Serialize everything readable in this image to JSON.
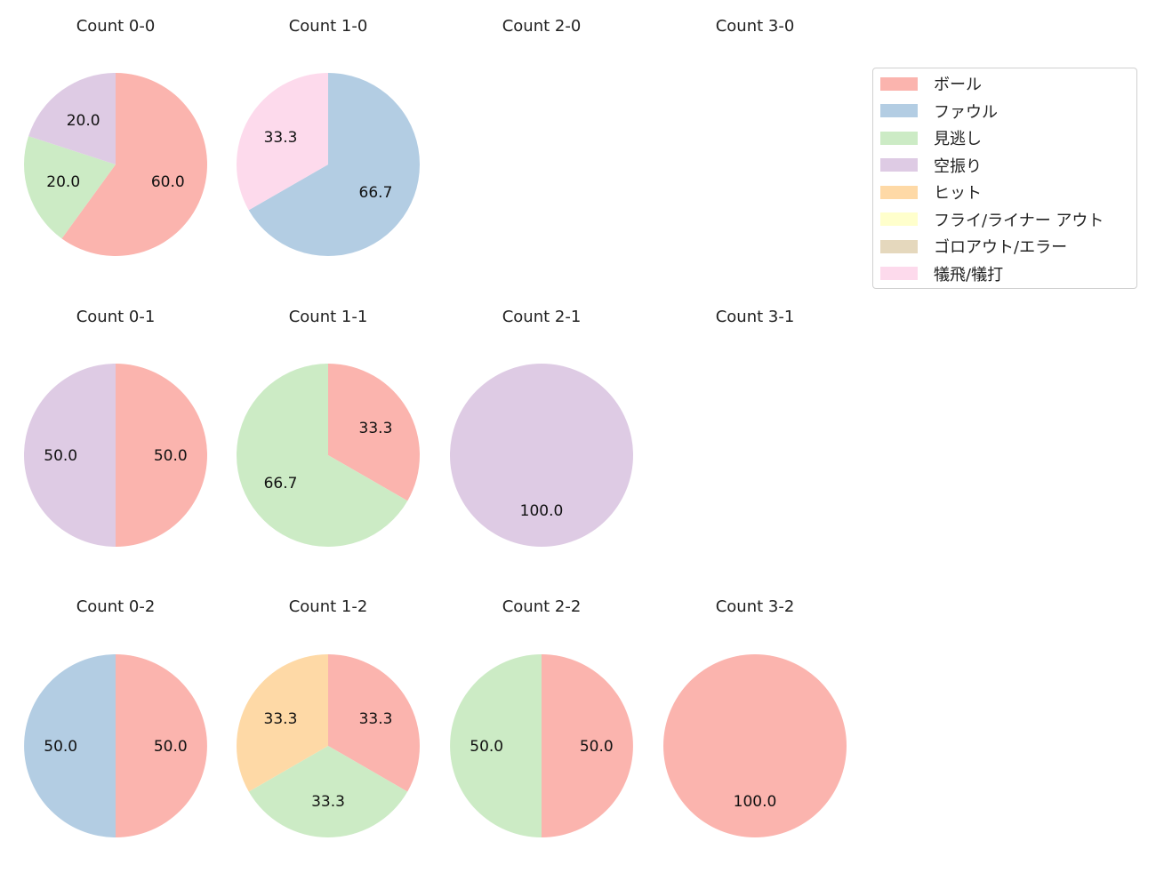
{
  "chart_data": {
    "type": "pie",
    "categories": [
      "ボール",
      "ファウル",
      "見逃し",
      "空振り",
      "ヒット",
      "フライ/ライナー アウト",
      "ゴロアウト/エラー",
      "犠飛/犠打"
    ],
    "colors": [
      "#fbb4ae",
      "#b3cde3",
      "#ccebc5",
      "#decbe4",
      "#fed9a6",
      "#ffffcc",
      "#e5d8bd",
      "#fddaec"
    ],
    "start_angle": 90,
    "direction": "clockwise",
    "legend_position": "top-right",
    "charts": [
      {
        "title": "Count 0-0",
        "values": [
          60,
          0,
          20,
          20,
          0,
          0,
          0,
          0
        ],
        "labels": [
          "60.0",
          "",
          "20.0",
          "20.0",
          "",
          "",
          "",
          ""
        ]
      },
      {
        "title": "Count 1-0",
        "values": [
          0,
          66.7,
          0,
          0,
          0,
          0,
          0,
          33.3
        ],
        "labels": [
          "",
          "66.7",
          "",
          "",
          "",
          "",
          "",
          "33.3"
        ]
      },
      {
        "title": "Count 2-0",
        "values": []
      },
      {
        "title": "Count 3-0",
        "values": []
      },
      {
        "title": "Count 0-1",
        "values": [
          50,
          0,
          0,
          50,
          0,
          0,
          0,
          0
        ],
        "labels": [
          "50.0",
          "",
          "",
          "50.0",
          "",
          "",
          "",
          ""
        ]
      },
      {
        "title": "Count 1-1",
        "values": [
          33.3,
          0,
          66.7,
          0,
          0,
          0,
          0,
          0
        ],
        "labels": [
          "33.3",
          "",
          "66.7",
          "",
          "",
          "",
          "",
          ""
        ]
      },
      {
        "title": "Count 2-1",
        "values": [
          0,
          0,
          0,
          100,
          0,
          0,
          0,
          0
        ],
        "labels": [
          "",
          "",
          "",
          "100.0",
          "",
          "",
          "",
          ""
        ]
      },
      {
        "title": "Count 3-1",
        "values": []
      },
      {
        "title": "Count 0-2",
        "values": [
          50,
          50,
          0,
          0,
          0,
          0,
          0,
          0
        ],
        "labels": [
          "50.0",
          "50.0",
          "",
          "",
          "",
          "",
          "",
          ""
        ]
      },
      {
        "title": "Count 1-2",
        "values": [
          33.3,
          0,
          33.3,
          0,
          33.3,
          0,
          0,
          0
        ],
        "labels": [
          "33.3",
          "",
          "33.3",
          "",
          "33.3",
          "",
          "",
          ""
        ]
      },
      {
        "title": "Count 2-2",
        "values": [
          50,
          0,
          50,
          0,
          0,
          0,
          0,
          0
        ],
        "labels": [
          "50.0",
          "",
          "50.0",
          "",
          "",
          "",
          "",
          ""
        ]
      },
      {
        "title": "Count 3-2",
        "values": [
          100,
          0,
          0,
          0,
          0,
          0,
          0,
          0
        ],
        "labels": [
          "100.0",
          "",
          "",
          "",
          "",
          "",
          "",
          ""
        ]
      }
    ]
  }
}
